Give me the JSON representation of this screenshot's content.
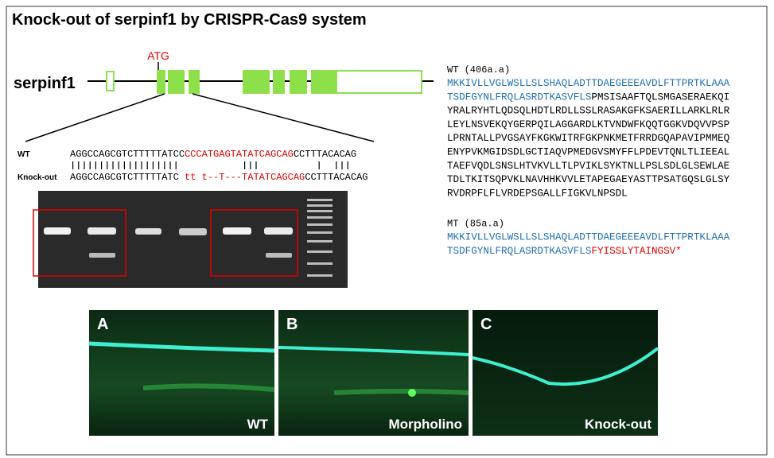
{
  "title": "Knock-out of serpinf1 by CRISPR-Cas9 system",
  "gene": {
    "name": "serpinf1",
    "start_codon": "ATG"
  },
  "alignment": {
    "rows": [
      {
        "label": "WT",
        "segments": [
          {
            "text": "AGGCCAGCGTCTTTTTATCC",
            "color": "#000000"
          },
          {
            "text": "CCCATGAGTATATCAGCAG",
            "color": "#e00000"
          },
          {
            "text": "CCTTTACACAG",
            "color": "#000000"
          }
        ]
      },
      {
        "label": "Knock-out",
        "segments": [
          {
            "text": "AGGCCAGCGTCTTTTTATC",
            "color": "#000000"
          },
          {
            "text": " tt t--T---TATATCAGCAG",
            "color": "#e00000"
          },
          {
            "text": "CCTTTACACAG",
            "color": "#000000"
          }
        ]
      }
    ]
  },
  "proteins": [
    {
      "label": "WT (406a.a)",
      "lines": [
        [
          {
            "text": "MKKIVLLVGLWSLLSLSHAQLADTTDAEGEEEAVDLFTTPRTKLAAA",
            "color": "#1f6fb0"
          }
        ],
        [
          {
            "text": "TSDFGYNLFRQLASRDTKASVFLS",
            "color": "#1f6fb0"
          },
          {
            "text": "PMSISAAFTQLSMGASERAEKQI",
            "color": "#000000"
          }
        ],
        [
          {
            "text": "YRALRYHTLQDSQLHDTLRDLLSSLRASAKGFKSAERILLARKLRLR",
            "color": "#000000"
          }
        ],
        [
          {
            "text": "LEYLNSVEKQYGERPQILAGGARDLKTVNDWFKQQTGGKVDQVVPSP",
            "color": "#000000"
          }
        ],
        [
          {
            "text": "LPRNTALLPVGSAYFKGKWITRFGKPNKMETFRRDGQAPAVIPMMEQ",
            "color": "#000000"
          }
        ],
        [
          {
            "text": "ENYPVKMGIDSDLGCTIAQVPMEDGVSMYFFLPDEVTQNLTLIEEAL",
            "color": "#000000"
          }
        ],
        [
          {
            "text": "TAEFVQDLSNSLHTVKVLLTLPVIKLSYKTNLLPSLSDLGLSEWLAE",
            "color": "#000000"
          }
        ],
        [
          {
            "text": "TDLTKITSQPVKLNAVHHKVVLETAPEGAEYASTTPSATGQSLGLSY",
            "color": "#000000"
          }
        ],
        [
          {
            "text": "RVDRPFLFLVRDEPSGALLFIGKVLNPSDL",
            "color": "#000000"
          }
        ]
      ]
    },
    {
      "label": "MT (85a.a)",
      "lines": [
        [
          {
            "text": "MKKIVLLVGLWSLLSLSHAQLADTTDAEGEEEAVDLFTTPRTKLAAA",
            "color": "#1f6fb0"
          }
        ],
        [
          {
            "text": "TSDFGYNLFRQLASRDTKASVFLS",
            "color": "#1f6fb0"
          },
          {
            "text": "FYISSLYTAINGSV*",
            "color": "#e00000"
          }
        ]
      ]
    }
  ],
  "panels": [
    {
      "letter": "A",
      "label": "WT"
    },
    {
      "letter": "B",
      "label": "Morpholino"
    },
    {
      "letter": "C",
      "label": "Knock-out"
    }
  ]
}
